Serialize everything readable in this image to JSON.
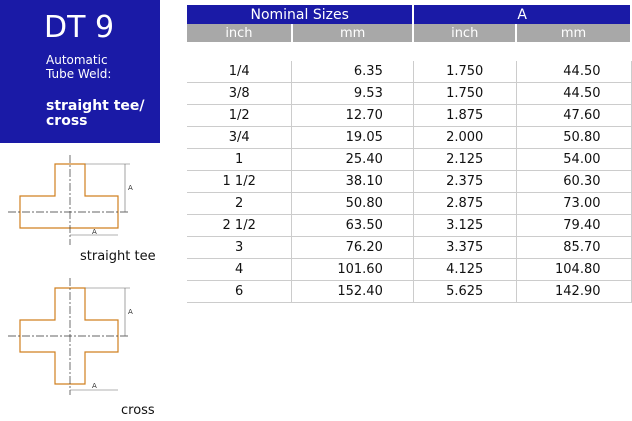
{
  "header": {
    "code": "DT 9",
    "subtitle_lines": [
      "Automatic",
      "Tube Weld:"
    ],
    "name_lines": [
      "straight tee/",
      "cross"
    ]
  },
  "table": {
    "groups": [
      "Nominal Sizes",
      "A"
    ],
    "columns": [
      "inch",
      "mm",
      "inch",
      "mm"
    ],
    "rows": [
      [
        "1/4",
        "6.35",
        "1.750",
        "44.50"
      ],
      [
        "3/8",
        "9.53",
        "1.750",
        "44.50"
      ],
      [
        "1/2",
        "12.70",
        "1.875",
        "47.60"
      ],
      [
        "3/4",
        "19.05",
        "2.000",
        "50.80"
      ],
      [
        "1",
        "25.40",
        "2.125",
        "54.00"
      ],
      [
        "1 1/2",
        "38.10",
        "2.375",
        "60.30"
      ],
      [
        "2",
        "50.80",
        "2.875",
        "73.00"
      ],
      [
        "2 1/2",
        "63.50",
        "3.125",
        "79.40"
      ],
      [
        "3",
        "76.20",
        "3.375",
        "85.70"
      ],
      [
        "4",
        "101.60",
        "4.125",
        "104.80"
      ],
      [
        "6",
        "152.40",
        "5.625",
        "142.90"
      ]
    ]
  },
  "diagrams": [
    {
      "caption": "straight tee",
      "dim_labels": [
        "A",
        "A"
      ]
    },
    {
      "caption": "cross",
      "dim_labels": [
        "A",
        "A"
      ]
    }
  ]
}
